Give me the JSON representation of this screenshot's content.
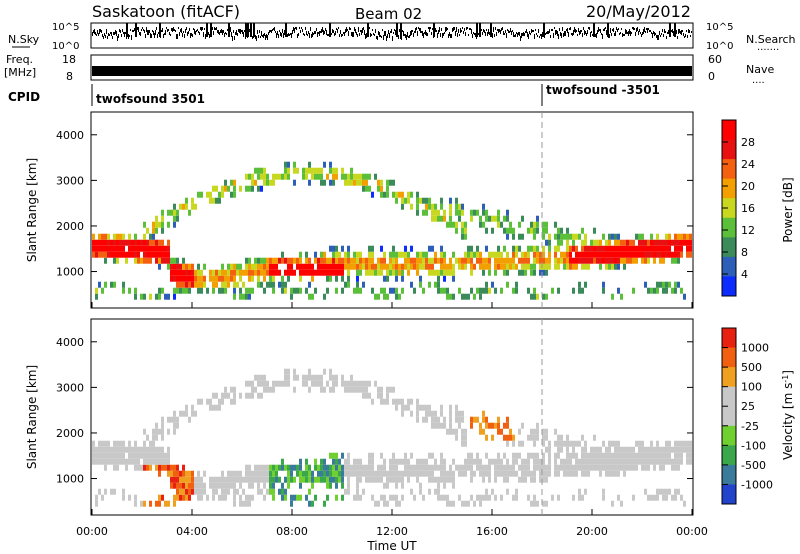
{
  "header": {
    "station": "Saskatoon (fitACF)",
    "beam": "Beam 02",
    "date": "20/May/2012"
  },
  "side_labels": {
    "nsky": "N.Sky",
    "nsearch": "N.Search",
    "freq_line1": "Freq.",
    "freq_line2": "[MHz]",
    "cpid": "CPID",
    "nave": "Nave"
  },
  "noise_axis": {
    "top": "10^5",
    "bottom": "10^0"
  },
  "freq_axis": {
    "top": "18",
    "bottom": "8"
  },
  "nave_axis": {
    "top": "60",
    "bottom": "0"
  },
  "cpid_labels": [
    {
      "name": "twofsound 3501",
      "start_hour": 0
    },
    {
      "name": "twofsound -3501",
      "start_hour": 18
    }
  ],
  "chart_data": [
    {
      "type": "heatmap",
      "ylabel": "Slant Range [km]",
      "ylim": [
        200,
        4500
      ],
      "yticks": [
        1000,
        2000,
        3000,
        4000
      ],
      "colorbar": {
        "label": "Power [dB]",
        "ticks": [
          "28",
          "24",
          "20",
          "16",
          "12",
          "8",
          "4"
        ]
      }
    },
    {
      "type": "heatmap",
      "ylabel": "Slant Range [km]",
      "ylim": [
        200,
        4500
      ],
      "yticks": [
        1000,
        2000,
        3000,
        4000
      ],
      "xlabel": "Time UT",
      "xticks": [
        "00:00",
        "04:00",
        "08:00",
        "12:00",
        "16:00",
        "20:00",
        "00:00"
      ],
      "colorbar": {
        "label": "Velocity [m s-1]",
        "ticks": [
          "1000",
          "500",
          "100",
          "25",
          "-25",
          "-100",
          "-500",
          "-1000"
        ]
      }
    }
  ],
  "colors": {
    "power_scale": [
      "#0b2bff",
      "#2e5fb8",
      "#3a8a5a",
      "#5bbf3a",
      "#c8d820",
      "#f2a000",
      "#f26010",
      "#e81010",
      "#ff0000"
    ],
    "velocity_scale": [
      "#2244cc",
      "#3a7a9a",
      "#3aa84a",
      "#6fd030",
      "#c8c8c8",
      "#c8c8c8",
      "#f0a020",
      "#f06010",
      "#e82010"
    ]
  }
}
